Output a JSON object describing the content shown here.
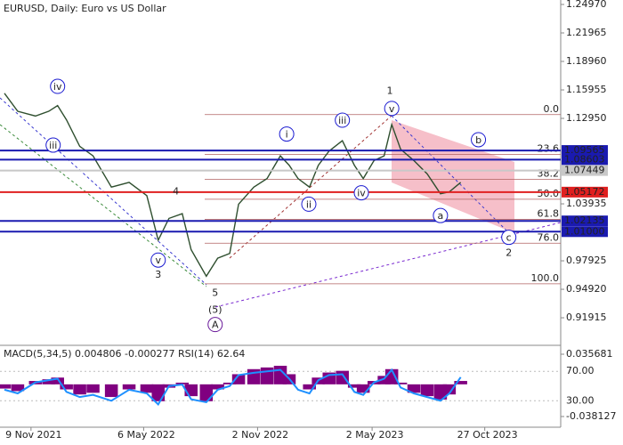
{
  "chart_data": {
    "type": "line",
    "title": "EURUSD, Daily:  Euro vs US Dollar",
    "x": [
      -42,
      -21,
      7,
      28,
      42,
      56,
      77,
      98,
      127,
      155,
      183,
      201,
      218,
      239,
      253,
      277,
      295,
      314,
      328,
      352,
      373,
      394,
      408,
      422,
      440,
      454,
      471,
      492,
      511,
      525,
      542,
      558,
      570,
      584,
      605,
      626,
      647,
      661,
      679
    ],
    "series": [
      {
        "color": "#2f4f2f",
        "values": [
          1.156,
          1.137,
          1.132,
          1.137,
          1.143,
          1.128,
          1.1,
          1.09,
          1.057,
          1.062,
          1.048,
          1.001,
          1.024,
          1.029,
          0.991,
          0.963,
          0.982,
          0.987,
          1.039,
          1.057,
          1.066,
          1.09,
          1.08,
          1.066,
          1.057,
          1.08,
          1.095,
          1.106,
          1.08,
          1.066,
          1.085,
          1.09,
          1.123,
          1.097,
          1.085,
          1.071,
          1.05,
          1.052,
          1.062
        ]
      }
    ],
    "xlim": [
      -49,
      837
    ],
    "xticks": [
      {
        "value": 0,
        "label": "9 Nov 2021"
      },
      {
        "value": 178,
        "label": "6 May 2022"
      },
      {
        "value": 358,
        "label": "2 Nov 2022"
      },
      {
        "value": 539,
        "label": "2 May 2023"
      },
      {
        "value": 717,
        "label": "27 Oct 2023"
      }
    ],
    "ylim": [
      0.8929,
      1.2544
    ],
    "yticks": [
      {
        "value": 1.2497,
        "label": "1.24970"
      },
      1.21965,
      {
        "value": 1.1896,
        "label": "1.18960"
      },
      1.15955,
      {
        "value": 1.1295,
        "label": "1.12950"
      },
      1.03935,
      0.97925,
      {
        "value": 0.9492,
        "label": "0.94920"
      },
      0.91915
    ],
    "levels": [
      {
        "value": 1.09565,
        "color": "#1a1ab0"
      },
      {
        "value": 1.08603,
        "color": "#1a1ab0"
      },
      {
        "value": 1.07449,
        "color": "#c8c8c8"
      },
      {
        "value": 1.05172,
        "color": "#e02020"
      },
      {
        "value": 1.02135,
        "color": "#1a1ab0"
      },
      {
        "value": 1.01,
        "label": "1.01000",
        "color": "#1a1ab0"
      }
    ],
    "fib": [
      {
        "label": "0.0",
        "value": 1.1335
      },
      {
        "label": "23.6",
        "value": 1.0914
      },
      {
        "label": "38.2",
        "value": 1.0653
      },
      {
        "label": "50.0",
        "value": 1.0442
      },
      {
        "label": "61.8",
        "value": 1.023
      },
      {
        "label": "76.0",
        "value": 0.9978
      },
      {
        "label": "100.0",
        "value": 0.955
      }
    ],
    "waves": [
      {
        "label": "iv",
        "x": 42,
        "y": 1.1633,
        "circle": true,
        "color": "#1a1ad0"
      },
      {
        "label": "iii",
        "x": 35,
        "y": 1.1013,
        "circle": true,
        "color": "#1a1ad0"
      },
      {
        "label": "v",
        "x": 201,
        "y": 0.98,
        "circle": true,
        "color": "#1a1ad0"
      },
      {
        "label": "3",
        "x": 201,
        "y": 0.965,
        "circle": false,
        "color": "#a03030"
      },
      {
        "label": "4",
        "x": 229,
        "y": 1.053,
        "circle": false,
        "color": "#a03030"
      },
      {
        "label": "5",
        "x": 291,
        "y": 0.946,
        "circle": false,
        "color": "#a03030"
      },
      {
        "label": "(5)",
        "x": 291,
        "y": 0.928,
        "circle": false,
        "color": "#2a8a2a"
      },
      {
        "label": "A",
        "x": 291,
        "y": 0.912,
        "circle": true,
        "color": "#6a1a9a"
      },
      {
        "label": "i",
        "x": 404,
        "y": 1.113,
        "circle": true,
        "color": "#1a1ad0"
      },
      {
        "label": "ii",
        "x": 439,
        "y": 1.039,
        "circle": true,
        "color": "#1a1ad0"
      },
      {
        "label": "iii",
        "x": 492,
        "y": 1.1276,
        "circle": true,
        "color": "#1a1ad0"
      },
      {
        "label": "iv",
        "x": 522,
        "y": 1.051,
        "circle": true,
        "color": "#1a1ad0"
      },
      {
        "label": "v",
        "x": 570,
        "y": 1.14,
        "circle": true,
        "color": "#1a1ad0"
      },
      {
        "label": "1",
        "x": 567,
        "y": 1.159,
        "circle": false,
        "color": "#a03030"
      },
      {
        "label": "a",
        "x": 647,
        "y": 1.027,
        "circle": true,
        "color": "#1a1ad0"
      },
      {
        "label": "b",
        "x": 707,
        "y": 1.107,
        "circle": true,
        "color": "#1a1ad0"
      },
      {
        "label": "c",
        "x": 755,
        "y": 1.004,
        "circle": true,
        "color": "#1a1ad0"
      },
      {
        "label": "2",
        "x": 755,
        "y": 0.988,
        "circle": false,
        "color": "#a03030"
      }
    ],
    "indicator": {
      "label": "MACD(5,34,5) 0.004806 -0.000277 RSI(14) 62.64",
      "ylim": [
        -0.05079,
        0.04412
      ],
      "yticks": [
        0.035681,
        -0.038127
      ],
      "rsi_lim": [
        -6,
        103
      ],
      "rsi_ticks": [
        {
          "value": 70,
          "label": "70.00"
        },
        {
          "value": 30,
          "label": "30.00"
        }
      ],
      "macd": {
        "color": "#800080",
        "values": [
          -0.005,
          -0.008,
          0.004,
          0.006,
          0.008,
          -0.006,
          -0.012,
          -0.01,
          -0.015,
          -0.006,
          -0.01,
          -0.02,
          -0.004,
          0.002,
          -0.014,
          -0.02,
          -0.006,
          0.002,
          0.012,
          0.018,
          0.02,
          0.022,
          0.012,
          0,
          -0.006,
          0.008,
          0.014,
          0.016,
          -0.004,
          -0.01,
          0.004,
          0.01,
          0.018,
          0.002,
          -0.01,
          -0.014,
          -0.018,
          -0.012,
          0.004
        ]
      },
      "rsi": {
        "color": "#1e90ff",
        "values": [
          45,
          40,
          55,
          58,
          60,
          42,
          35,
          38,
          30,
          45,
          40,
          25,
          50,
          52,
          32,
          28,
          45,
          50,
          65,
          68,
          70,
          72,
          60,
          45,
          40,
          58,
          65,
          66,
          42,
          38,
          55,
          60,
          72,
          48,
          40,
          35,
          30,
          40,
          62
        ]
      }
    }
  }
}
